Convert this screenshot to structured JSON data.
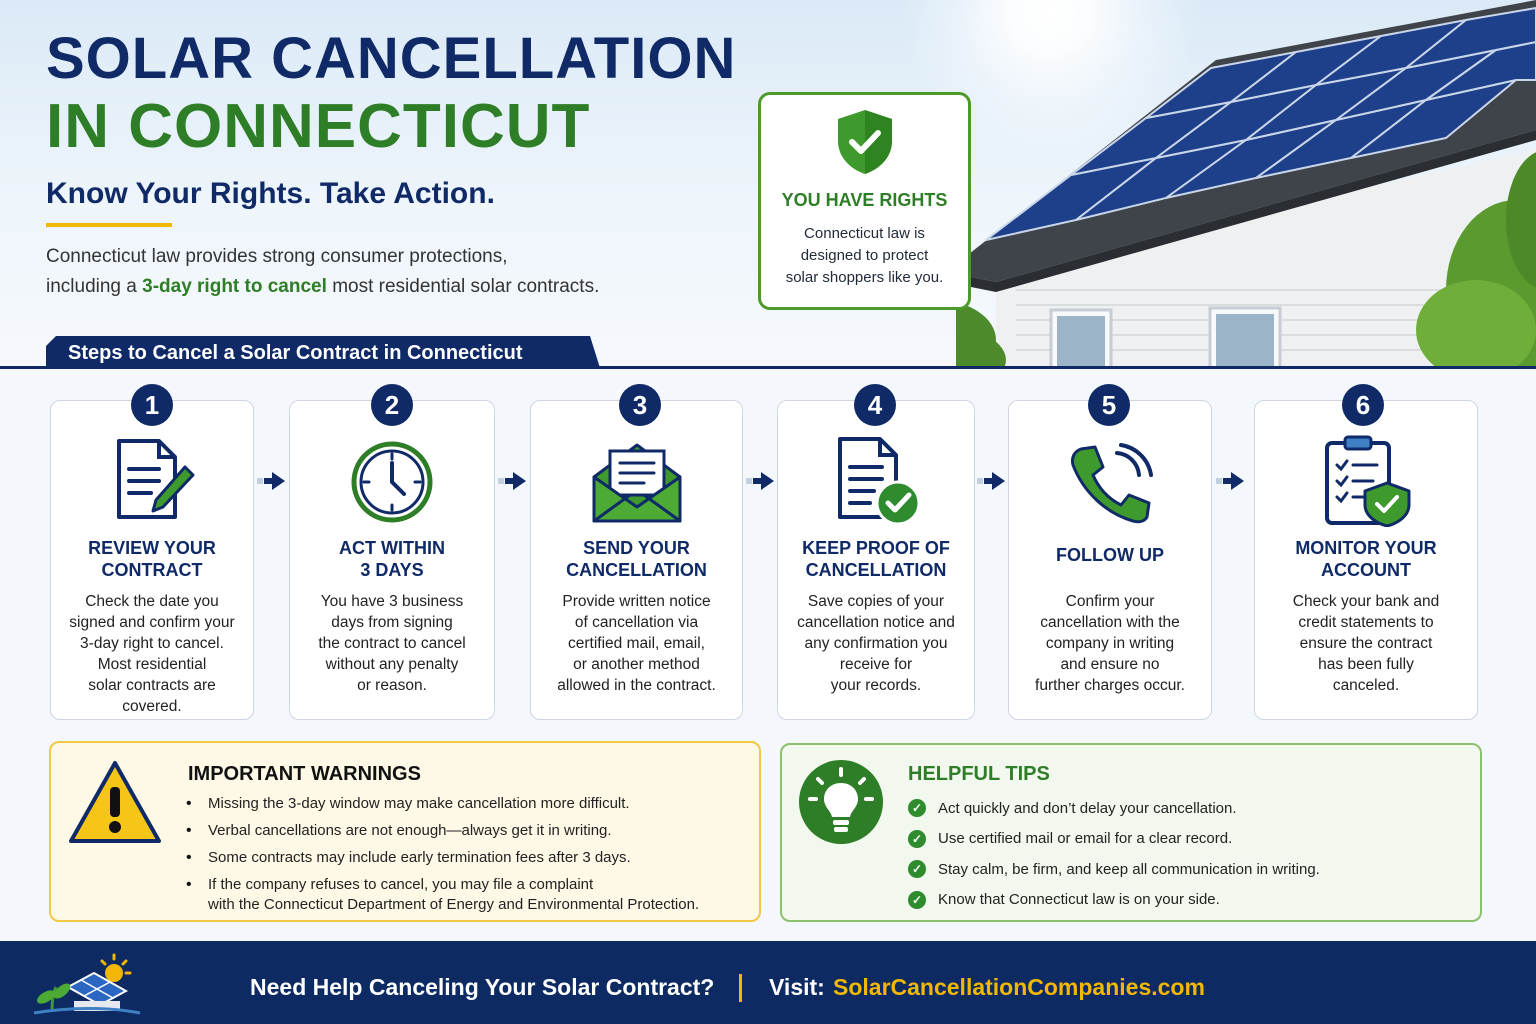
{
  "header": {
    "title_line1": "SOLAR CANCELLATION",
    "title_line2": "IN CONNECTICUT",
    "subtitle": "Know Your Rights. Take Action.",
    "intro_line1": "Connecticut law provides strong consumer protections,",
    "intro_before": "including a",
    "intro_highlight": "3-day right to cancel",
    "intro_after": "most residential solar contracts."
  },
  "rights_card": {
    "icon": "shield-check-icon",
    "title": "YOU HAVE RIGHTS",
    "body_line1": "Connecticut law is",
    "body_line2": "designed to protect",
    "body_line3": "solar shoppers like you."
  },
  "steps_heading": "Steps to Cancel a Solar Contract in Connecticut",
  "steps": [
    {
      "number": "1",
      "icon": "document-pen-icon",
      "title_line1": "REVIEW YOUR",
      "title_line2": "CONTRACT",
      "body": [
        "Check the date you",
        "signed and confirm your",
        "3-day right to cancel.",
        "Most residential",
        "solar contracts are",
        "covered."
      ]
    },
    {
      "number": "2",
      "icon": "clock-icon",
      "title_line1": "ACT WITHIN",
      "title_line2": "3 DAYS",
      "body": [
        "You have 3 business",
        "days from signing",
        "the contract to cancel",
        "without any penalty",
        "or reason."
      ]
    },
    {
      "number": "3",
      "icon": "envelope-icon",
      "title_line1": "SEND YOUR",
      "title_line2": "CANCELLATION",
      "body": [
        "Provide written notice",
        "of cancellation via",
        "certified mail, email,",
        "or another method",
        "allowed in the contract."
      ]
    },
    {
      "number": "4",
      "icon": "document-check-icon",
      "title_line1": "KEEP PROOF OF",
      "title_line2": "CANCELLATION",
      "body": [
        "Save copies of your",
        "cancellation notice and",
        "any confirmation you",
        "receive for",
        "your records."
      ]
    },
    {
      "number": "5",
      "icon": "phone-icon",
      "title_line1": "FOLLOW UP",
      "title_line2": "",
      "body": [
        "Confirm your",
        "cancellation with the",
        "company in writing",
        "and ensure no",
        "further charges occur."
      ]
    },
    {
      "number": "6",
      "icon": "clipboard-shield-icon",
      "title_line1": "MONITOR YOUR",
      "title_line2": "ACCOUNT",
      "body": [
        "Check your bank and",
        "credit statements to",
        "ensure the contract",
        "has been fully",
        "canceled."
      ]
    }
  ],
  "warnings": {
    "icon": "warning-triangle-icon",
    "title": "IMPORTANT WARNINGS",
    "items": [
      "Missing the 3-day window may make cancellation more difficult.",
      "Verbal cancellations are not enough—always get it in writing.",
      "Some contracts may include early termination fees after 3 days.",
      "If the company refuses to cancel, you may file a complaint"
    ],
    "item4_line2": "with the Connecticut Department of Energy and Environmental Protection."
  },
  "tips": {
    "icon": "lightbulb-icon",
    "title": "HELPFUL TIPS",
    "items": [
      "Act quickly and don’t delay your cancellation.",
      "Use certified mail or email for a clear record.",
      "Stay calm, be firm, and keep all communication in writing.",
      "Know that Connecticut law is on your side."
    ]
  },
  "footer": {
    "logo": "solar-house-logo",
    "question": "Need Help Canceling Your Solar Contract?",
    "visit_label": "Visit:",
    "url": "SolarCancellationCompanies.com"
  },
  "colors": {
    "navy": "#0f2a66",
    "green": "#2e7d27",
    "yellow": "#f2b705"
  }
}
